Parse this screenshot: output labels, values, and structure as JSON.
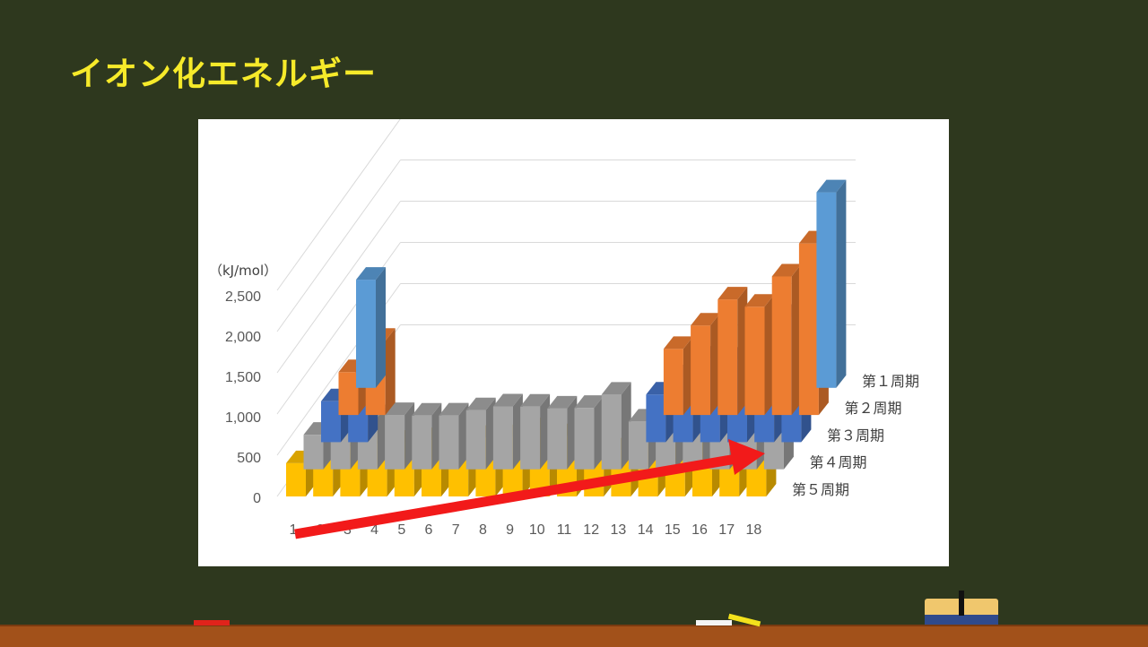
{
  "title": "イオン化エネルギー",
  "chart_data": {
    "type": "bar",
    "subtype": "3d-clustered",
    "unit_label": "（kJ/mol）",
    "categories": [
      "1",
      "2",
      "3",
      "4",
      "5",
      "6",
      "7",
      "8",
      "9",
      "10",
      "11",
      "12",
      "13",
      "14",
      "15",
      "16",
      "17",
      "18"
    ],
    "ylim": [
      0,
      2500
    ],
    "yticks": [
      "0",
      "500",
      "1,000",
      "1,500",
      "2,000",
      "2,500"
    ],
    "series": [
      {
        "name": "第１周期",
        "color": "#5b9bd5",
        "values": [
          1312,
          null,
          null,
          null,
          null,
          null,
          null,
          null,
          null,
          null,
          null,
          null,
          null,
          null,
          null,
          null,
          null,
          2372
        ]
      },
      {
        "name": "第２周期",
        "color": "#ed7d31",
        "values": [
          520,
          900,
          null,
          null,
          null,
          null,
          null,
          null,
          null,
          null,
          null,
          null,
          801,
          1086,
          1402,
          1314,
          1681,
          2081
        ]
      },
      {
        "name": "第３周期",
        "color": "#4472c4",
        "values": [
          496,
          738,
          null,
          null,
          null,
          null,
          null,
          null,
          null,
          null,
          null,
          null,
          578,
          787,
          1012,
          1000,
          1251,
          1521
        ]
      },
      {
        "name": "第４周期",
        "color": "#a5a5a5",
        "values": [
          419,
          590,
          633,
          659,
          651,
          653,
          717,
          763,
          760,
          737,
          745,
          906,
          579,
          762,
          947,
          941,
          1140,
          1351
        ]
      },
      {
        "name": "第５周期",
        "color": "#ffc000",
        "values": [
          403,
          550,
          600,
          640,
          652,
          684,
          702,
          710,
          720,
          804,
          731,
          868,
          558,
          709,
          834,
          869,
          1008,
          1170
        ]
      }
    ],
    "legend_position": "right",
    "annotation": "arrow-increasing"
  }
}
